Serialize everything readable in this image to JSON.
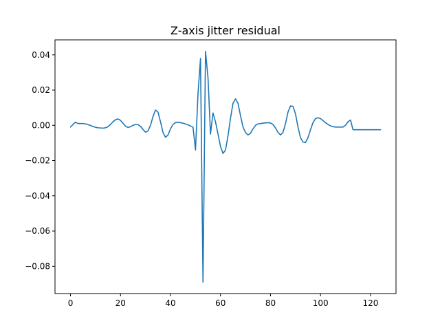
{
  "chart_data": {
    "type": "line",
    "title": "Z-axis jitter residual",
    "xlabel": "",
    "ylabel": "",
    "xlim": [
      -6.2,
      130.2
    ],
    "ylim": [
      -0.0955,
      0.0485
    ],
    "xticks": [
      0,
      20,
      40,
      60,
      80,
      100,
      120
    ],
    "yticks": [
      0.04,
      0.02,
      0.0,
      -0.02,
      -0.04,
      -0.06,
      -0.08
    ],
    "ytick_labels": [
      "0.04",
      "0.02",
      "0.00",
      "−0.02",
      "−0.04",
      "−0.06",
      "−0.08"
    ],
    "grid": false,
    "legend": "none",
    "colors": {
      "series": "#1f77b4",
      "axes": "#000000",
      "background": "#ffffff"
    },
    "series": [
      {
        "x": [
          0,
          1,
          2,
          3,
          4,
          5,
          6,
          7,
          8,
          9,
          10,
          11,
          12,
          13,
          14,
          15,
          16,
          17,
          18,
          19,
          20,
          21,
          22,
          23,
          24,
          25,
          26,
          27,
          28,
          29,
          30,
          31,
          32,
          33,
          34,
          35,
          36,
          37,
          38,
          39,
          40,
          41,
          42,
          43,
          44,
          45,
          46,
          47,
          48,
          49,
          50,
          51,
          52,
          53,
          54,
          55,
          56,
          57,
          58,
          59,
          60,
          61,
          62,
          63,
          64,
          65,
          66,
          67,
          68,
          69,
          70,
          71,
          72,
          73,
          74,
          75,
          76,
          77,
          78,
          79,
          80,
          81,
          82,
          83,
          84,
          85,
          86,
          87,
          88,
          89,
          90,
          91,
          92,
          93,
          94,
          95,
          96,
          97,
          98,
          99,
          100,
          101,
          102,
          103,
          104,
          105,
          106,
          107,
          108,
          109,
          110,
          111,
          112,
          113,
          114,
          115,
          116,
          117,
          118,
          119,
          120,
          121,
          122,
          123,
          124
        ],
        "y": [
          -0.001,
          0.0005,
          0.0018,
          0.001,
          0.001,
          0.001,
          0.0008,
          0.0004,
          -0.0001,
          -0.0007,
          -0.0011,
          -0.0014,
          -0.0015,
          -0.0016,
          -0.0014,
          -0.0008,
          0.0005,
          0.002,
          0.0032,
          0.0036,
          0.0028,
          0.0012,
          -0.0005,
          -0.0012,
          -0.0008,
          0.0,
          0.0005,
          0.0004,
          -0.0006,
          -0.0023,
          -0.0039,
          -0.0032,
          0.0,
          0.005,
          0.0087,
          0.0075,
          0.002,
          -0.004,
          -0.0068,
          -0.0055,
          -0.002,
          0.0005,
          0.0015,
          0.0018,
          0.0015,
          0.0012,
          0.0008,
          0.0003,
          -0.0004,
          -0.001,
          -0.014,
          0.018,
          0.038,
          -0.089,
          0.042,
          0.027,
          -0.005,
          0.007,
          0.002,
          -0.005,
          -0.012,
          -0.016,
          -0.014,
          -0.006,
          0.004,
          0.0125,
          0.015,
          0.0125,
          0.0055,
          -0.001,
          -0.004,
          -0.0055,
          -0.0045,
          -0.002,
          0.0,
          0.0008,
          0.001,
          0.0012,
          0.0014,
          0.0015,
          0.0013,
          0.0005,
          -0.0015,
          -0.004,
          -0.0055,
          -0.004,
          0.001,
          0.0075,
          0.011,
          0.0108,
          0.0065,
          -0.001,
          -0.007,
          -0.0095,
          -0.0098,
          -0.007,
          -0.0025,
          0.0015,
          0.0038,
          0.0043,
          0.0038,
          0.0027,
          0.0015,
          0.0005,
          -0.0003,
          -0.0008,
          -0.001,
          -0.001,
          -0.001,
          -0.001,
          0.0,
          0.002,
          0.003,
          -0.0025,
          -0.0025,
          -0.0025,
          -0.0025,
          -0.0025,
          -0.0025,
          -0.0025,
          -0.0025,
          -0.0025,
          -0.0025,
          -0.0025,
          -0.0025
        ]
      }
    ]
  }
}
